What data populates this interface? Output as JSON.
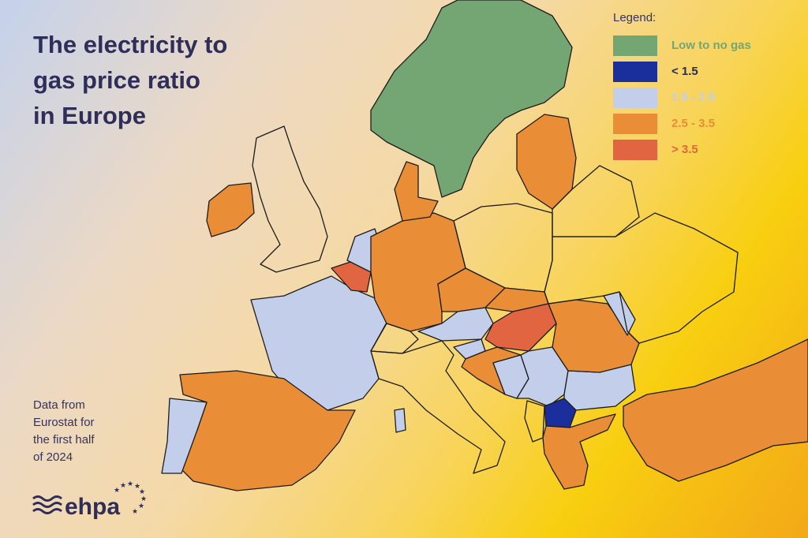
{
  "title": [
    "The electricity to",
    "gas price ratio",
    "in Europe"
  ],
  "source": [
    "Data from",
    "Eurostat for",
    "the first half",
    "of 2024"
  ],
  "logo_text": "ehpa",
  "legend": {
    "title": "Legend:",
    "items": [
      {
        "key": "green",
        "label": "Low to no gas",
        "color": "#74a673",
        "text_color": "#74a673"
      },
      {
        "key": "dark",
        "label": "< 1.5",
        "color": "#1a2e9c",
        "text_color": "#2b2a55"
      },
      {
        "key": "light",
        "label": "1.5 - 2.5",
        "color": "#c3cfea",
        "text_color": "#c3cfea"
      },
      {
        "key": "orange",
        "label": "2.5 - 3.5",
        "color": "#e98d37",
        "text_color": "#e98d37"
      },
      {
        "key": "red",
        "label": "> 3.5",
        "color": "#e26541",
        "text_color": "#e26541"
      }
    ]
  },
  "countries": {
    "scandinavia": "green",
    "ireland": "orange",
    "united-kingdom": "none",
    "france": "light",
    "corsica": "light",
    "spain": "orange",
    "portugal": "light",
    "belgium": "red",
    "netherlands": "light",
    "germany": "orange",
    "denmark": "orange",
    "poland": "none",
    "czechia": "orange",
    "austria": "light",
    "switzerland": "none",
    "italy": "none",
    "hungary": "red",
    "slovakia": "orange",
    "romania": "orange",
    "moldova": "light",
    "bulgaria": "light",
    "serbia": "light",
    "croatia": "orange",
    "bosnia": "light",
    "slovenia": "light",
    "north-macedonia": "dark",
    "greece": "orange",
    "albania": "none",
    "turkey": "orange",
    "baltics": "orange",
    "belarus": "none",
    "ukraine": "none"
  }
}
